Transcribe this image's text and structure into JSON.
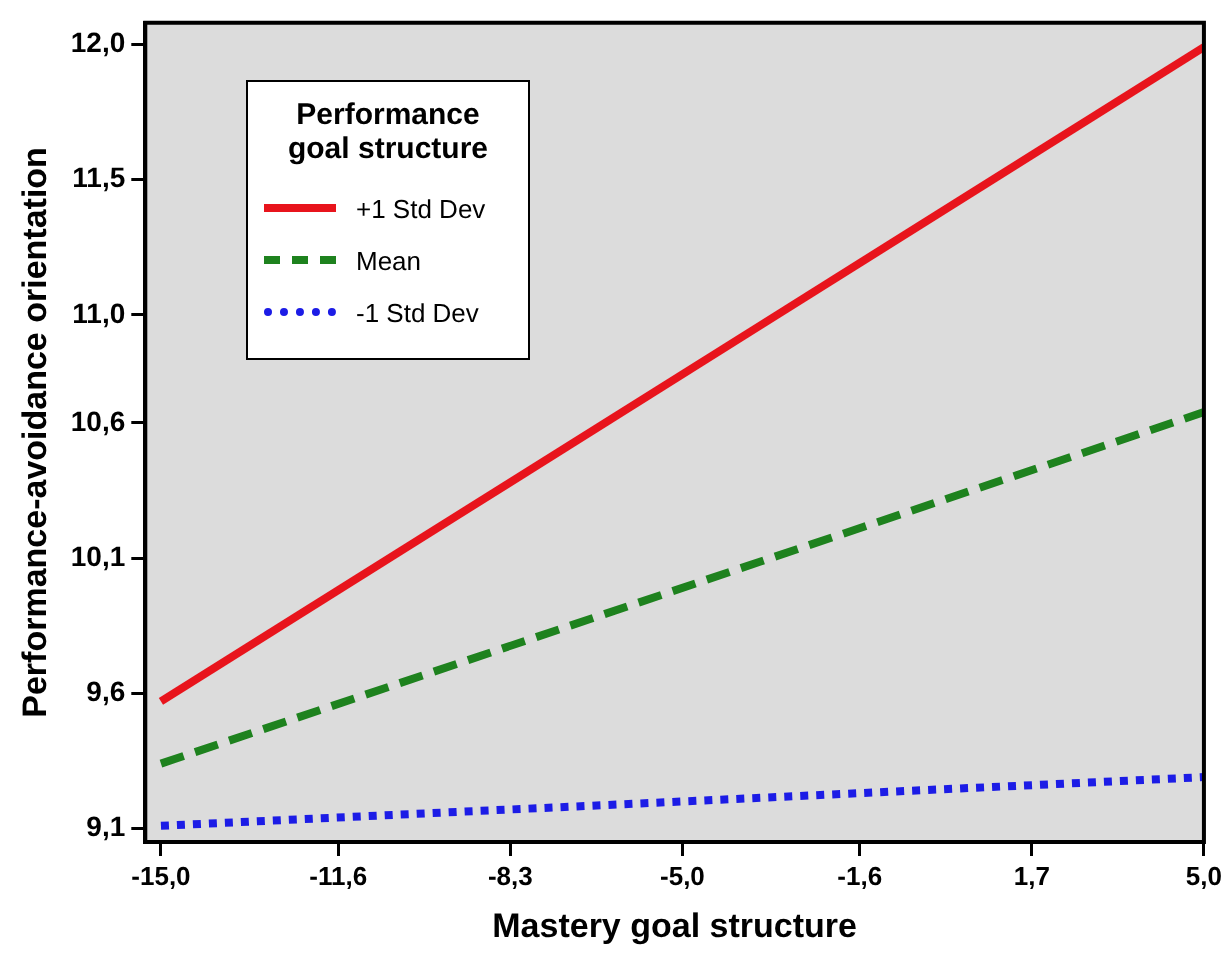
{
  "chart_data": {
    "type": "line",
    "xlabel": "Mastery goal structure",
    "ylabel": "Performance-avoidance orientation",
    "legend_title": "Performance goal structure",
    "legend": "top left",
    "grid": false,
    "marker": "none",
    "xlim": [
      -15.3,
      5
    ],
    "x": [
      -15,
      5
    ],
    "ylim": [
      9.05,
      12.08
    ],
    "xticks": [
      {
        "value": -15,
        "label": "-15,0"
      },
      {
        "value": -11.6,
        "label": "-11,6"
      },
      {
        "value": -8.3,
        "label": "-8,3"
      },
      {
        "value": -5,
        "label": "-5,0"
      },
      {
        "value": -1.6,
        "label": "-1,6"
      },
      {
        "value": 1.7,
        "label": "1,7"
      },
      {
        "value": 5,
        "label": "5,0"
      }
    ],
    "yticks": [
      {
        "value": 9.1,
        "label": "9,1"
      },
      {
        "value": 9.6,
        "label": "9,6"
      },
      {
        "value": 10.1,
        "label": "10,1"
      },
      {
        "value": 10.6,
        "label": "10,6"
      },
      {
        "value": 11.0,
        "label": "11,0"
      },
      {
        "value": 11.5,
        "label": "11,5"
      },
      {
        "value": 12.0,
        "label": "12,0"
      }
    ],
    "series": [
      {
        "name": "+1 Std Dev",
        "color": "#e8141c",
        "line_style": "solid",
        "values": [
          9.57,
          11.99
        ]
      },
      {
        "name": "Mean",
        "color": "#1e821e",
        "line_style": "dashed",
        "values": [
          9.34,
          10.64
        ]
      },
      {
        "name": "-1 Std Dev",
        "color": "#1c1ce6",
        "line_style": "dotted",
        "values": [
          9.11,
          9.29
        ]
      }
    ]
  }
}
